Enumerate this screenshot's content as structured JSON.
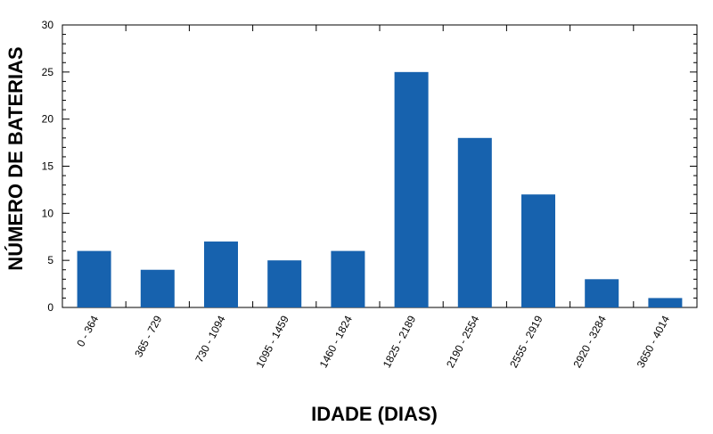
{
  "chart_data": {
    "type": "bar",
    "title": "",
    "xlabel": "IDADE (DIAS)",
    "ylabel": "NÚMERO DE BATERIAS",
    "categories": [
      "0 - 364",
      "365 - 729",
      "730 - 1094",
      "1095 - 1459",
      "1460 - 1824",
      "1825 - 2189",
      "2190 - 2554",
      "2555 - 2919",
      "2920 - 3284",
      "3650 - 4014"
    ],
    "values": [
      6,
      4,
      7,
      5,
      6,
      25,
      18,
      12,
      3,
      1
    ],
    "ylim": [
      0,
      30
    ],
    "yticks": [
      "0",
      "5",
      "10",
      "15",
      "20",
      "25",
      "30"
    ],
    "bar_color": "#1762AE",
    "grid": false,
    "legend": "none"
  }
}
